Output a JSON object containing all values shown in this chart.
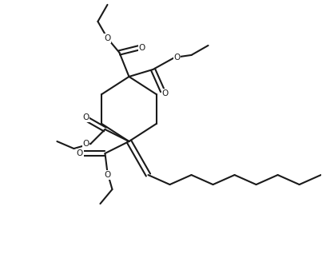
{
  "background_color": "#ffffff",
  "line_color": "#1a1a1a",
  "line_width": 1.5,
  "figsize": [
    4.13,
    3.18
  ],
  "dpi": 100,
  "xlim": [
    0.0,
    1.3
  ],
  "ylim": [
    0.0,
    1.05
  ]
}
